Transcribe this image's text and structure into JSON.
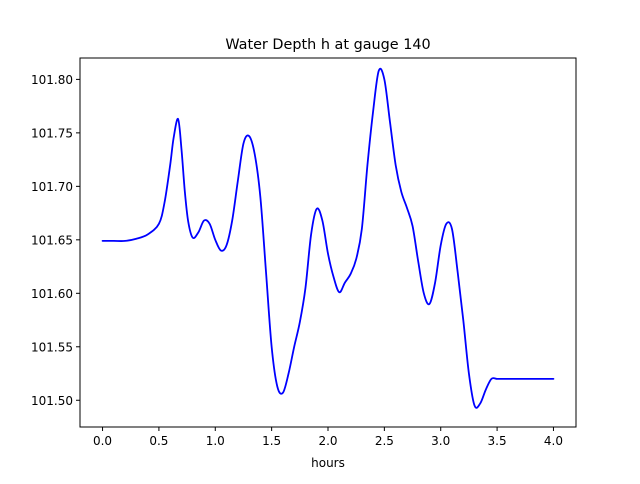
{
  "chart_data": {
    "type": "line",
    "title": "Water Depth h at gauge 140",
    "xlabel": "hours",
    "ylabel": "",
    "xlim": [
      -0.2,
      4.2
    ],
    "ylim": [
      101.475,
      101.82
    ],
    "x_ticks": [
      0.0,
      0.5,
      1.0,
      1.5,
      2.0,
      2.5,
      3.0,
      3.5,
      4.0
    ],
    "x_tick_labels": [
      "0.0",
      "0.5",
      "1.0",
      "1.5",
      "2.0",
      "2.5",
      "3.0",
      "3.5",
      "4.0"
    ],
    "y_ticks": [
      101.5,
      101.55,
      101.6,
      101.65,
      101.7,
      101.75,
      101.8
    ],
    "y_tick_labels": [
      "101.50",
      "101.55",
      "101.60",
      "101.65",
      "101.70",
      "101.75",
      "101.80"
    ],
    "grid": false,
    "series": [
      {
        "color": "#0000ff",
        "x": [
          0.0,
          0.1,
          0.2,
          0.3,
          0.4,
          0.5,
          0.55,
          0.6,
          0.63,
          0.67,
          0.7,
          0.73,
          0.76,
          0.8,
          0.85,
          0.9,
          0.95,
          1.0,
          1.05,
          1.1,
          1.15,
          1.2,
          1.25,
          1.3,
          1.35,
          1.4,
          1.45,
          1.5,
          1.55,
          1.6,
          1.65,
          1.7,
          1.75,
          1.8,
          1.85,
          1.9,
          1.95,
          2.0,
          2.05,
          2.1,
          2.15,
          2.2,
          2.25,
          2.3,
          2.35,
          2.4,
          2.45,
          2.5,
          2.55,
          2.6,
          2.65,
          2.7,
          2.75,
          2.8,
          2.85,
          2.9,
          2.95,
          3.0,
          3.05,
          3.1,
          3.15,
          3.2,
          3.25,
          3.3,
          3.35,
          3.4,
          3.45,
          3.5,
          3.55,
          3.6,
          3.65,
          3.7,
          3.75,
          3.8,
          3.85,
          3.9,
          3.95,
          4.0
        ],
        "y": [
          101.649,
          101.649,
          101.649,
          101.651,
          101.655,
          101.665,
          101.685,
          101.72,
          101.745,
          101.763,
          101.735,
          101.695,
          101.667,
          101.652,
          101.657,
          101.668,
          101.665,
          101.65,
          101.64,
          101.645,
          101.668,
          101.705,
          101.74,
          101.747,
          101.73,
          101.69,
          101.62,
          101.55,
          101.513,
          101.507,
          101.525,
          101.55,
          101.573,
          101.605,
          101.655,
          101.679,
          101.668,
          101.637,
          101.615,
          101.601,
          101.61,
          101.618,
          101.632,
          101.66,
          101.72,
          101.77,
          101.808,
          101.8,
          101.76,
          101.72,
          101.695,
          101.68,
          101.663,
          101.63,
          101.6,
          101.59,
          101.61,
          101.645,
          101.665,
          101.66,
          101.62,
          101.575,
          101.525,
          101.495,
          101.497,
          101.51,
          101.52,
          101.52,
          101.52,
          101.52,
          101.52,
          101.52,
          101.52,
          101.52,
          101.52,
          101.52,
          101.52,
          101.52
        ]
      }
    ]
  }
}
